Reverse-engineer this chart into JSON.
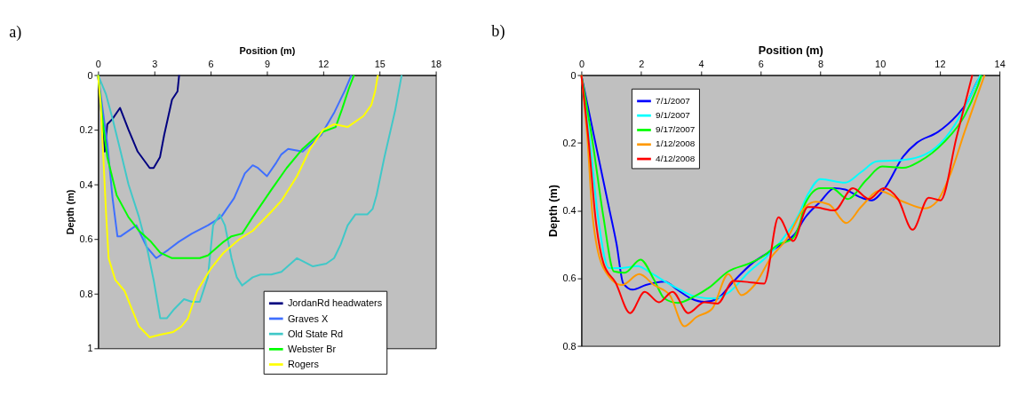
{
  "chart_data": [
    {
      "type": "line",
      "title": "a)",
      "xlabel": "Position (m)",
      "ylabel": "Depth (m)",
      "xlim": [
        0,
        18
      ],
      "xticks": [
        0,
        3,
        6,
        9,
        12,
        15,
        18
      ],
      "ylim": [
        1,
        0
      ],
      "yticks": [
        0,
        0.2,
        0.4,
        0.6,
        0.8,
        1
      ],
      "grid": false,
      "legend": "bottom right",
      "line_style": "solid",
      "marker": "none",
      "series": [
        {
          "name": "JordanRd headwaters",
          "color": "#000080",
          "x": [
            0,
            0.35,
            0.49,
            0.77,
            1.17,
            1.62,
            2.11,
            2.75,
            2.96,
            3.3,
            3.52,
            3.94,
            4.23,
            4.32
          ],
          "values": [
            0,
            0.28,
            0.18,
            0.16,
            0.12,
            0.2,
            0.28,
            0.34,
            0.34,
            0.3,
            0.22,
            0.09,
            0.06,
            0
          ]
        },
        {
          "name": "Graves X",
          "color": "#3f6fff",
          "x": [
            0,
            0.21,
            0.49,
            0.77,
            1.03,
            1.2,
            2.04,
            2.6,
            3.1,
            3.73,
            4.3,
            5.0,
            5.85,
            6.55,
            7.25,
            7.82,
            8.24,
            8.52,
            9.0,
            9.5,
            9.77,
            10.13,
            10.9,
            11.88,
            12.6,
            13.15,
            13.5
          ],
          "values": [
            0,
            0.11,
            0.25,
            0.45,
            0.59,
            0.59,
            0.55,
            0.63,
            0.67,
            0.64,
            0.61,
            0.58,
            0.55,
            0.52,
            0.45,
            0.36,
            0.33,
            0.34,
            0.37,
            0.32,
            0.29,
            0.27,
            0.28,
            0.22,
            0.135,
            0.057,
            0
          ]
        },
        {
          "name": "Old State Rd",
          "color": "#40c8c8",
          "x": [
            0,
            0.42,
            0.77,
            1.2,
            1.62,
            2.18,
            2.6,
            2.96,
            3.31,
            3.66,
            4.01,
            4.58,
            5.0,
            5.42,
            5.85,
            6.13,
            6.48,
            6.76,
            7.11,
            7.39,
            7.68,
            8.24,
            8.66,
            9.23,
            9.77,
            10.6,
            11.45,
            12.16,
            12.58,
            12.93,
            13.3,
            13.71,
            14.35,
            14.63,
            14.84,
            15.26,
            15.83,
            16.18
          ],
          "values": [
            0,
            0.07,
            0.16,
            0.28,
            0.4,
            0.52,
            0.63,
            0.75,
            0.89,
            0.89,
            0.86,
            0.82,
            0.83,
            0.83,
            0.74,
            0.55,
            0.51,
            0.55,
            0.67,
            0.74,
            0.77,
            0.74,
            0.73,
            0.73,
            0.72,
            0.67,
            0.7,
            0.69,
            0.67,
            0.62,
            0.55,
            0.51,
            0.51,
            0.49,
            0.44,
            0.3,
            0.13,
            0
          ]
        },
        {
          "name": "Webster Br",
          "color": "#00ff00",
          "x": [
            0,
            0.21,
            0.49,
            0.99,
            1.62,
            2.18,
            2.82,
            3.31,
            3.94,
            4.72,
            5.42,
            5.85,
            6.69,
            7.11,
            7.68,
            8.24,
            9.23,
            10.05,
            10.9,
            11.88,
            12.66,
            13.0,
            13.36,
            13.64
          ],
          "values": [
            0,
            0.15,
            0.3,
            0.44,
            0.52,
            0.57,
            0.61,
            0.65,
            0.67,
            0.67,
            0.67,
            0.66,
            0.61,
            0.59,
            0.58,
            0.52,
            0.42,
            0.34,
            0.27,
            0.21,
            0.19,
            0.125,
            0.05,
            0
          ]
        },
        {
          "name": "Rogers",
          "color": "#ffff00",
          "x": [
            0,
            0.14,
            0.28,
            0.42,
            0.56,
            0.92,
            1.41,
            1.76,
            2.18,
            2.75,
            3.31,
            4.01,
            4.44,
            4.79,
            5.28,
            5.99,
            6.69,
            7.54,
            8.24,
            9.23,
            9.77,
            10.6,
            11.3,
            12.0,
            12.58,
            13.3,
            14.14,
            14.56,
            14.77,
            14.91
          ],
          "values": [
            0,
            0.11,
            0.3,
            0.5,
            0.67,
            0.75,
            0.79,
            0.85,
            0.92,
            0.96,
            0.95,
            0.94,
            0.92,
            0.89,
            0.79,
            0.71,
            0.65,
            0.6,
            0.57,
            0.5,
            0.46,
            0.37,
            0.27,
            0.2,
            0.18,
            0.19,
            0.15,
            0.11,
            0.057,
            0
          ]
        }
      ]
    },
    {
      "type": "line",
      "title": "b)",
      "xlabel": "Position (m)",
      "ylabel": "Depth (m)",
      "xlim": [
        0,
        14
      ],
      "xticks": [
        0,
        2,
        4,
        6,
        8,
        10,
        12,
        14
      ],
      "ylim": [
        0.8,
        0
      ],
      "yticks": [
        0,
        0.2,
        0.4,
        0.6,
        0.8
      ],
      "grid": false,
      "legend": "top left",
      "line_style": "solid",
      "marker": "none",
      "series": [
        {
          "name": "7/1/2007",
          "color": "#0000ff",
          "x": [
            0,
            0.47,
            0.92,
            1.18,
            1.4,
            1.72,
            2.16,
            2.78,
            3.23,
            3.67,
            4.12,
            4.56,
            5.09,
            5.72,
            6.25,
            6.7,
            7.14,
            7.5,
            8.0,
            8.47,
            8.83,
            9.27,
            9.72,
            10.16,
            10.78,
            11.23,
            11.94,
            12.56,
            12.92,
            13.27,
            13.4
          ],
          "values": [
            0,
            0.2,
            0.39,
            0.5,
            0.615,
            0.634,
            0.62,
            0.61,
            0.635,
            0.66,
            0.67,
            0.66,
            0.61,
            0.556,
            0.525,
            0.5,
            0.47,
            0.42,
            0.374,
            0.334,
            0.338,
            0.358,
            0.37,
            0.334,
            0.24,
            0.2,
            0.168,
            0.12,
            0.08,
            0.017,
            0
          ]
        },
        {
          "name": "9/1/2007",
          "color": "#00ffff",
          "x": [
            0,
            0.29,
            0.56,
            0.92,
            1.36,
            1.89,
            2.25,
            2.69,
            3.32,
            3.85,
            4.47,
            4.92,
            5.63,
            6.16,
            6.69,
            7.23,
            7.6,
            8.0,
            8.83,
            9.36,
            9.89,
            10.78,
            11.5,
            12.2,
            12.74,
            13.18,
            13.36
          ],
          "values": [
            0,
            0.2,
            0.42,
            0.57,
            0.57,
            0.564,
            0.58,
            0.604,
            0.635,
            0.655,
            0.66,
            0.643,
            0.58,
            0.54,
            0.49,
            0.42,
            0.35,
            0.307,
            0.318,
            0.287,
            0.255,
            0.251,
            0.235,
            0.184,
            0.112,
            0.033,
            0
          ]
        },
        {
          "name": "9/17/2007",
          "color": "#00ff00",
          "x": [
            0,
            0.38,
            0.74,
            1.09,
            1.45,
            1.98,
            2.43,
            2.78,
            3.23,
            3.76,
            4.29,
            4.92,
            5.63,
            6.07,
            6.6,
            7.05,
            7.32,
            7.49,
            8.0,
            8.38,
            8.92,
            9.54,
            10.07,
            10.78,
            11.32,
            12.12,
            12.83,
            13.27,
            13.4
          ],
          "values": [
            0,
            0.2,
            0.42,
            0.58,
            0.584,
            0.545,
            0.604,
            0.66,
            0.673,
            0.655,
            0.627,
            0.58,
            0.556,
            0.536,
            0.5,
            0.485,
            0.437,
            0.38,
            0.334,
            0.334,
            0.366,
            0.31,
            0.27,
            0.274,
            0.255,
            0.2,
            0.12,
            0.033,
            0
          ]
        },
        {
          "name": "1/12/2008",
          "color": "#ff9900",
          "x": [
            0,
            0.2,
            0.38,
            0.74,
            1.36,
            1.94,
            2.43,
            2.96,
            3.45,
            3.85,
            4.38,
            4.92,
            5.36,
            5.8,
            6.34,
            6.87,
            7.49,
            7.85,
            8.29,
            8.87,
            9.36,
            9.98,
            10.78,
            11.5,
            11.9,
            12.38,
            12.83,
            13.27,
            13.5
          ],
          "values": [
            0,
            0.184,
            0.42,
            0.57,
            0.62,
            0.588,
            0.62,
            0.65,
            0.742,
            0.715,
            0.69,
            0.588,
            0.65,
            0.62,
            0.54,
            0.485,
            0.39,
            0.374,
            0.382,
            0.437,
            0.39,
            0.342,
            0.374,
            0.394,
            0.374,
            0.287,
            0.168,
            0.057,
            0
          ]
        },
        {
          "name": "4/12/2008",
          "color": "#ff0000",
          "x": [
            0,
            0.25,
            0.47,
            0.74,
            1.14,
            1.63,
            2.12,
            2.6,
            3.05,
            3.58,
            4.12,
            4.56,
            5.09,
            5.63,
            6.12,
            6.6,
            7.09,
            7.58,
            7.76,
            8.47,
            9.09,
            9.63,
            10.12,
            10.6,
            11.09,
            11.63,
            12.03,
            12.56,
            13.09
          ],
          "values": [
            0,
            0.2,
            0.42,
            0.556,
            0.612,
            0.703,
            0.64,
            0.671,
            0.64,
            0.703,
            0.671,
            0.675,
            0.608,
            0.612,
            0.616,
            0.42,
            0.49,
            0.39,
            0.39,
            0.4,
            0.334,
            0.366,
            0.334,
            0.366,
            0.457,
            0.362,
            0.37,
            0.184,
            0
          ]
        }
      ]
    }
  ]
}
